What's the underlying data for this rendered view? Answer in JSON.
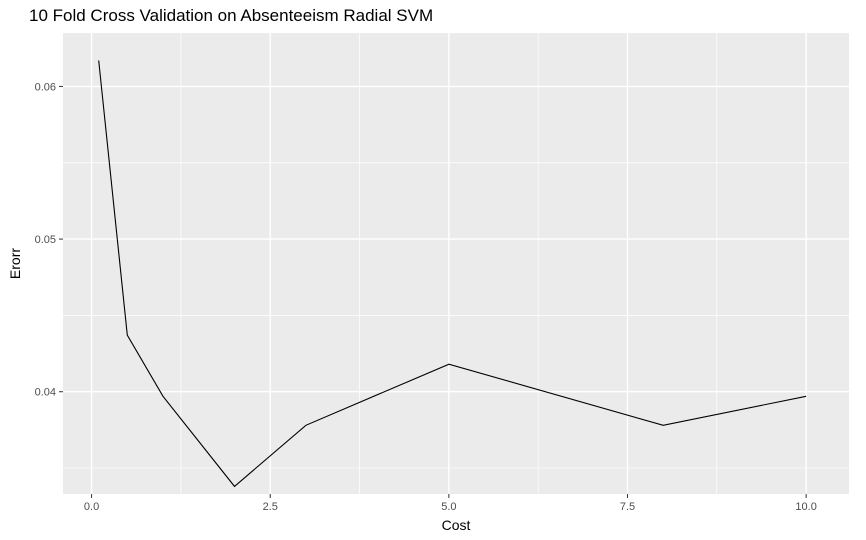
{
  "chart_data": {
    "type": "line",
    "title": "10 Fold Cross Validation on Absenteeism Radial SVM",
    "xlabel": "Cost",
    "ylabel": "Erorr",
    "xlim": [
      -0.4,
      10.6
    ],
    "ylim": [
      0.0333,
      0.0635
    ],
    "x_ticks": [
      0.0,
      2.5,
      5.0,
      7.5,
      10.0
    ],
    "x_tick_labels": [
      "0.0",
      "2.5",
      "5.0",
      "7.5",
      "10.0"
    ],
    "x_minor_ticks": [
      1.25,
      3.75,
      6.25,
      8.75
    ],
    "y_ticks": [
      0.04,
      0.05,
      0.06
    ],
    "y_tick_labels": [
      "0.04",
      "0.05",
      "0.06"
    ],
    "y_minor_ticks": [
      0.035,
      0.045,
      0.055
    ],
    "grid": true,
    "colors": {
      "panel_background": "#ebebeb",
      "grid": "#ffffff",
      "line": "#000000"
    },
    "series": [
      {
        "x": [
          0.1,
          0.5,
          1,
          2,
          3,
          5,
          8,
          10
        ],
        "y": [
          0.0617,
          0.0437,
          0.0397,
          0.0338,
          0.0378,
          0.0418,
          0.0378,
          0.0397
        ]
      }
    ]
  }
}
